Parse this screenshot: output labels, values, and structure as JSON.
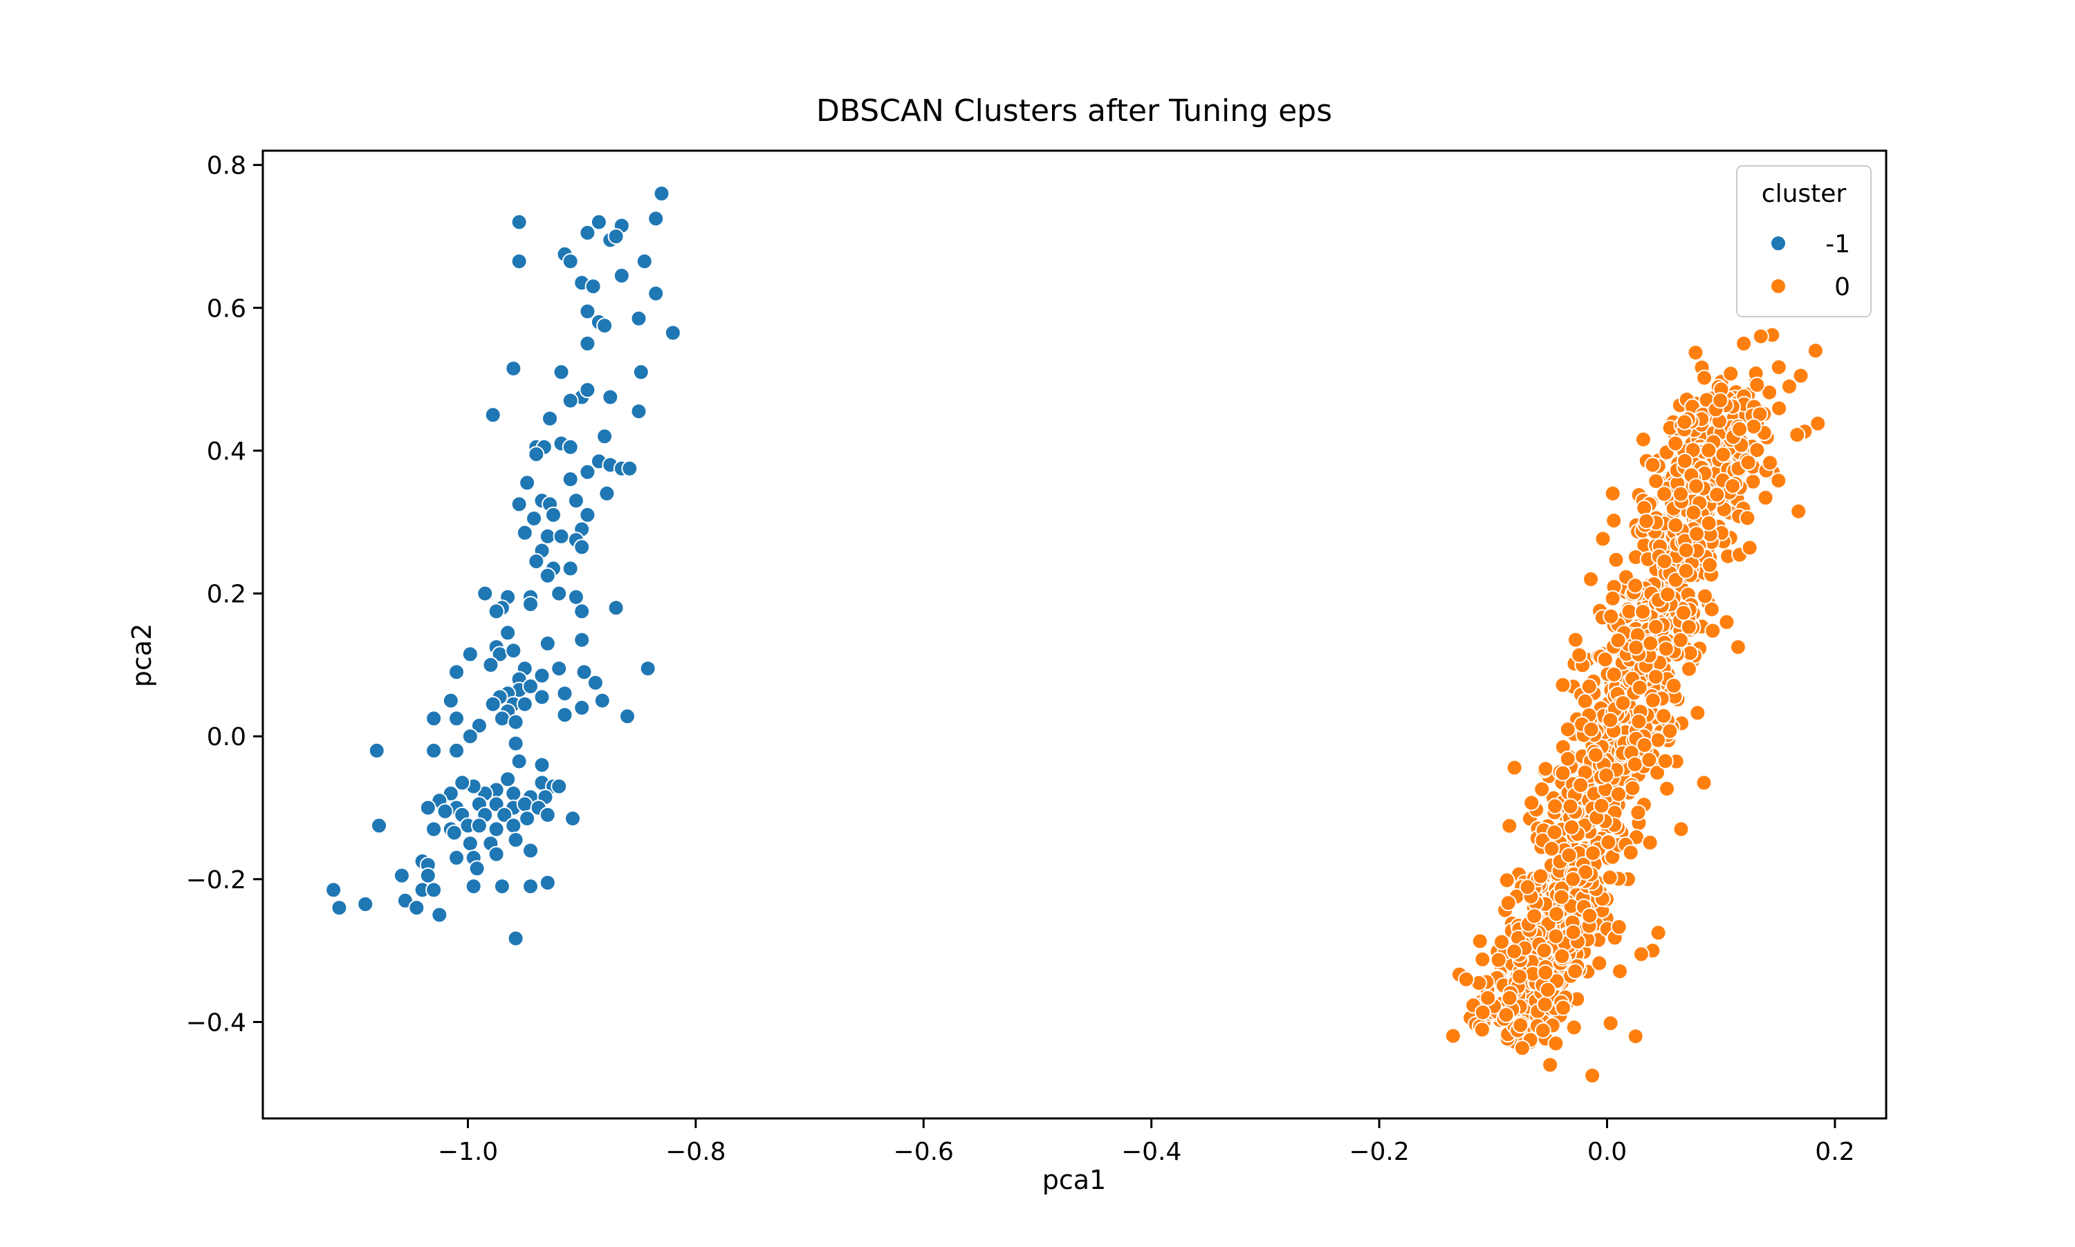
{
  "chart_data": {
    "type": "scatter",
    "title": "DBSCAN Clusters after Tuning eps",
    "xlabel": "pca1",
    "ylabel": "pca2",
    "xlim": [
      -1.18,
      0.245
    ],
    "ylim": [
      -0.535,
      0.82
    ],
    "xticks": [
      -1.0,
      -0.8,
      -0.6,
      -0.4,
      -0.2,
      0.0,
      0.2
    ],
    "xtick_labels": [
      "−1.0",
      "−0.8",
      "−0.6",
      "−0.4",
      "−0.2",
      "0.0",
      "0.2"
    ],
    "yticks": [
      -0.4,
      -0.2,
      0.0,
      0.2,
      0.4,
      0.6,
      0.8
    ],
    "ytick_labels": [
      "−0.4",
      "−0.2",
      "0.0",
      "0.2",
      "0.4",
      "0.6",
      "0.8"
    ],
    "grid": false,
    "legend": {
      "title": "cluster",
      "position": "top-right"
    },
    "series": [
      {
        "name": "-1",
        "color": "#1f77b4",
        "points": [
          [
            -0.955,
            0.72
          ],
          [
            -0.885,
            0.72
          ],
          [
            -0.865,
            0.715
          ],
          [
            -0.83,
            0.76
          ],
          [
            -0.835,
            0.725
          ],
          [
            -0.895,
            0.705
          ],
          [
            -0.875,
            0.695
          ],
          [
            -0.87,
            0.7
          ],
          [
            -0.955,
            0.665
          ],
          [
            -0.915,
            0.675
          ],
          [
            -0.91,
            0.665
          ],
          [
            -0.9,
            0.635
          ],
          [
            -0.89,
            0.63
          ],
          [
            -0.845,
            0.665
          ],
          [
            -0.865,
            0.645
          ],
          [
            -0.835,
            0.62
          ],
          [
            -0.82,
            0.565
          ],
          [
            -0.85,
            0.585
          ],
          [
            -0.895,
            0.595
          ],
          [
            -0.885,
            0.58
          ],
          [
            -0.88,
            0.575
          ],
          [
            -0.895,
            0.55
          ],
          [
            -0.96,
            0.515
          ],
          [
            -0.918,
            0.51
          ],
          [
            -0.9,
            0.475
          ],
          [
            -0.895,
            0.485
          ],
          [
            -0.875,
            0.475
          ],
          [
            -0.848,
            0.51
          ],
          [
            -0.85,
            0.455
          ],
          [
            -0.91,
            0.47
          ],
          [
            -0.928,
            0.445
          ],
          [
            -0.978,
            0.45
          ],
          [
            -0.88,
            0.42
          ],
          [
            -0.94,
            0.405
          ],
          [
            -0.933,
            0.405
          ],
          [
            -0.918,
            0.41
          ],
          [
            -0.91,
            0.405
          ],
          [
            -0.94,
            0.395
          ],
          [
            -0.895,
            0.37
          ],
          [
            -0.885,
            0.385
          ],
          [
            -0.875,
            0.38
          ],
          [
            -0.865,
            0.375
          ],
          [
            -0.858,
            0.375
          ],
          [
            -0.91,
            0.36
          ],
          [
            -0.948,
            0.355
          ],
          [
            -0.878,
            0.34
          ],
          [
            -0.955,
            0.325
          ],
          [
            -0.935,
            0.33
          ],
          [
            -0.928,
            0.325
          ],
          [
            -0.905,
            0.33
          ],
          [
            -0.942,
            0.305
          ],
          [
            -0.925,
            0.31
          ],
          [
            -0.895,
            0.31
          ],
          [
            -0.9,
            0.29
          ],
          [
            -0.95,
            0.285
          ],
          [
            -0.93,
            0.28
          ],
          [
            -0.918,
            0.28
          ],
          [
            -0.905,
            0.275
          ],
          [
            -0.9,
            0.265
          ],
          [
            -0.935,
            0.26
          ],
          [
            -0.94,
            0.245
          ],
          [
            -0.925,
            0.235
          ],
          [
            -0.91,
            0.235
          ],
          [
            -0.93,
            0.225
          ],
          [
            -0.92,
            0.2
          ],
          [
            -0.905,
            0.195
          ],
          [
            -0.945,
            0.195
          ],
          [
            -0.985,
            0.2
          ],
          [
            -0.965,
            0.195
          ],
          [
            -0.97,
            0.18
          ],
          [
            -0.975,
            0.175
          ],
          [
            -0.945,
            0.185
          ],
          [
            -0.9,
            0.175
          ],
          [
            -0.87,
            0.18
          ],
          [
            -0.965,
            0.145
          ],
          [
            -0.9,
            0.135
          ],
          [
            -0.975,
            0.125
          ],
          [
            -0.972,
            0.115
          ],
          [
            -0.96,
            0.12
          ],
          [
            -0.93,
            0.13
          ],
          [
            -0.998,
            0.115
          ],
          [
            -0.98,
            0.1
          ],
          [
            -0.95,
            0.095
          ],
          [
            -0.92,
            0.095
          ],
          [
            -0.898,
            0.09
          ],
          [
            -0.842,
            0.095
          ],
          [
            -1.01,
            0.09
          ],
          [
            -0.955,
            0.08
          ],
          [
            -0.935,
            0.085
          ],
          [
            -0.955,
            0.065
          ],
          [
            -0.945,
            0.07
          ],
          [
            -0.935,
            0.055
          ],
          [
            -0.965,
            0.06
          ],
          [
            -0.972,
            0.055
          ],
          [
            -0.978,
            0.045
          ],
          [
            -0.96,
            0.045
          ],
          [
            -0.95,
            0.045
          ],
          [
            -0.888,
            0.075
          ],
          [
            -0.882,
            0.05
          ],
          [
            -0.915,
            0.06
          ],
          [
            -1.015,
            0.05
          ],
          [
            -0.965,
            0.035
          ],
          [
            -0.97,
            0.025
          ],
          [
            -0.958,
            0.02
          ],
          [
            -0.99,
            0.015
          ],
          [
            -1.03,
            0.025
          ],
          [
            -1.01,
            0.025
          ],
          [
            -0.915,
            0.03
          ],
          [
            -0.9,
            0.04
          ],
          [
            -0.86,
            0.028
          ],
          [
            -0.998,
            0.0
          ],
          [
            -1.08,
            -0.02
          ],
          [
            -1.03,
            -0.02
          ],
          [
            -1.01,
            -0.02
          ],
          [
            -0.958,
            -0.01
          ],
          [
            -0.955,
            -0.035
          ],
          [
            -0.935,
            -0.04
          ],
          [
            -0.935,
            -0.065
          ],
          [
            -0.925,
            -0.07
          ],
          [
            -0.965,
            -0.06
          ],
          [
            -0.975,
            -0.075
          ],
          [
            -0.985,
            -0.08
          ],
          [
            -0.995,
            -0.07
          ],
          [
            -1.005,
            -0.065
          ],
          [
            -0.96,
            -0.08
          ],
          [
            -0.945,
            -0.085
          ],
          [
            -0.932,
            -0.085
          ],
          [
            -0.92,
            -0.07
          ],
          [
            -1.015,
            -0.08
          ],
          [
            -1.025,
            -0.09
          ],
          [
            -0.99,
            -0.095
          ],
          [
            -0.975,
            -0.095
          ],
          [
            -0.96,
            -0.1
          ],
          [
            -0.95,
            -0.095
          ],
          [
            -0.938,
            -0.1
          ],
          [
            -1.01,
            -0.1
          ],
          [
            -1.035,
            -0.1
          ],
          [
            -1.02,
            -0.105
          ],
          [
            -1.005,
            -0.11
          ],
          [
            -0.985,
            -0.11
          ],
          [
            -0.968,
            -0.11
          ],
          [
            -0.948,
            -0.115
          ],
          [
            -0.93,
            -0.11
          ],
          [
            -0.908,
            -0.115
          ],
          [
            -1.078,
            -0.125
          ],
          [
            -1.03,
            -0.13
          ],
          [
            -1.015,
            -0.13
          ],
          [
            -1.0,
            -0.125
          ],
          [
            -0.99,
            -0.125
          ],
          [
            -0.975,
            -0.13
          ],
          [
            -0.96,
            -0.125
          ],
          [
            -1.012,
            -0.135
          ],
          [
            -0.958,
            -0.145
          ],
          [
            -0.998,
            -0.15
          ],
          [
            -0.98,
            -0.15
          ],
          [
            -0.945,
            -0.16
          ],
          [
            -1.04,
            -0.175
          ],
          [
            -1.035,
            -0.18
          ],
          [
            -1.01,
            -0.17
          ],
          [
            -0.995,
            -0.17
          ],
          [
            -0.975,
            -0.165
          ],
          [
            -1.058,
            -0.195
          ],
          [
            -1.035,
            -0.195
          ],
          [
            -0.992,
            -0.185
          ],
          [
            -1.04,
            -0.215
          ],
          [
            -1.03,
            -0.215
          ],
          [
            -0.995,
            -0.21
          ],
          [
            -0.97,
            -0.21
          ],
          [
            -0.945,
            -0.21
          ],
          [
            -0.93,
            -0.205
          ],
          [
            -1.118,
            -0.215
          ],
          [
            -1.055,
            -0.23
          ],
          [
            -1.045,
            -0.24
          ],
          [
            -1.09,
            -0.235
          ],
          [
            -1.025,
            -0.25
          ],
          [
            -1.113,
            -0.24
          ],
          [
            -0.958,
            -0.283
          ]
        ]
      },
      {
        "name": "0",
        "color": "#ff7f0e",
        "generated": {
          "count": 1250,
          "seed": 7,
          "y_range": [
            -0.475,
            0.545
          ],
          "center_line": {
            "intercept": 0.009,
            "slope": 0.205
          },
          "half_width": 0.045,
          "extra_points": [
            [
              0.005,
              0.193
            ],
            [
              -0.05,
              -0.46
            ],
            [
              -0.013,
              -0.475
            ],
            [
              0.183,
              0.54
            ],
            [
              0.185,
              0.438
            ],
            [
              0.17,
              0.505
            ],
            [
              0.16,
              0.49
            ],
            [
              0.145,
              0.562
            ],
            [
              0.135,
              0.56
            ],
            [
              0.12,
              0.55
            ],
            [
              0.143,
              0.383
            ],
            [
              0.168,
              0.315
            ],
            [
              0.105,
              0.16
            ],
            [
              0.115,
              0.125
            ],
            [
              0.085,
              -0.065
            ],
            [
              0.065,
              -0.13
            ],
            [
              0.045,
              -0.275
            ],
            [
              0.04,
              -0.3
            ],
            [
              0.025,
              -0.42
            ],
            [
              -0.045,
              -0.43
            ],
            [
              -0.052,
              -0.355
            ],
            [
              -0.045,
              -0.28
            ],
            [
              -0.04,
              -0.225
            ],
            [
              -0.03,
              -0.2
            ],
            [
              0.03,
              -0.305
            ],
            [
              0.068,
              0.44
            ],
            [
              0.06,
              0.41
            ],
            [
              0.005,
              0.34
            ],
            [
              0.04,
              0.38
            ]
          ]
        }
      }
    ]
  }
}
